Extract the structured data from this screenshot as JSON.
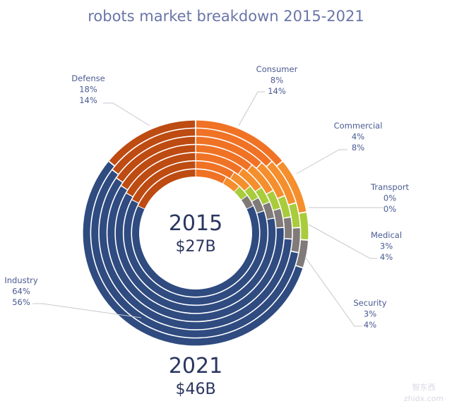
{
  "chart_data": {
    "type": "donut",
    "title": "robots market breakdown 2015-2021",
    "rings": {
      "inner": "2015",
      "outer": "2021"
    },
    "center_labels": [
      {
        "year": "2015",
        "total": "$27B"
      },
      {
        "year": "2021",
        "total": "$46B"
      }
    ],
    "categories": [
      "Consumer",
      "Commercial",
      "Transport",
      "Medical",
      "Security",
      "Industry",
      "Defense"
    ],
    "series": [
      {
        "name": "2015",
        "values": [
          8,
          4,
          0,
          3,
          3,
          64,
          18
        ]
      },
      {
        "name": "2021",
        "values": [
          14,
          8,
          0,
          4,
          4,
          56,
          14
        ]
      }
    ],
    "unit": "%",
    "colors": {
      "Consumer": "#f07224",
      "Commercial": "#f58e2c",
      "Transport": "#f2b53a",
      "Medical": "#a8cc3c",
      "Security": "#807a78",
      "Industry": "#2f4b80",
      "Defense": "#bd4b12"
    }
  },
  "watermark": {
    "text": "智东西",
    "sub": "zhidx.com"
  }
}
